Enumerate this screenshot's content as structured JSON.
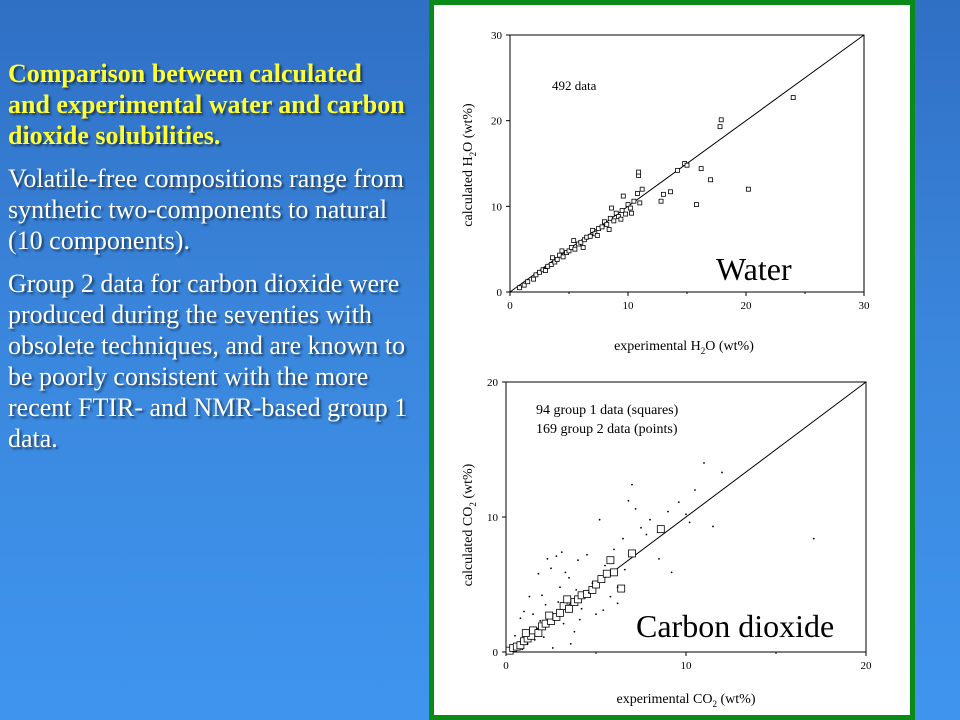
{
  "text": {
    "heading": "Comparison between calculated and experimental water and carbon dioxide solubilities.",
    "para1": "Volatile-free compositions range from synthetic two-components to natural (10 components).",
    "para2": "Group 2 data for carbon dioxide were produced during the seventies with obsolete techniques, and are known to be poorly consistent with the more recent FTIR- and NMR-based group 1 data."
  },
  "colors": {
    "heading": "#ffff33",
    "body_text": "#ffffff",
    "panel_border": "#0a8a16",
    "background": "#3a86dc"
  },
  "chart_data": [
    {
      "type": "scatter",
      "title": "",
      "label": "Water",
      "annotation": "492 data",
      "xlabel": "experimental H2O (wt%)",
      "ylabel": "calculated H2O (wt%)",
      "xlim": [
        0,
        30
      ],
      "ylim": [
        0,
        30
      ],
      "xticks": [
        "0",
        "10",
        "20",
        "30"
      ],
      "yticks": [
        "0",
        "10",
        "20",
        "30"
      ],
      "reference_line": "1:1",
      "grid": false,
      "series": [
        {
          "marker": "square",
          "points": [
            [
              0.8,
              0.5
            ],
            [
              1.2,
              0.8
            ],
            [
              1.5,
              1.2
            ],
            [
              2,
              1.5
            ],
            [
              2.2,
              2
            ],
            [
              2.5,
              2.3
            ],
            [
              2.8,
              2.6
            ],
            [
              3,
              2.5
            ],
            [
              3.2,
              3
            ],
            [
              3.5,
              3.2
            ],
            [
              3.8,
              3.5
            ],
            [
              4,
              3.8
            ],
            [
              4.2,
              4.3
            ],
            [
              4.5,
              4.1
            ],
            [
              4.8,
              4.6
            ],
            [
              5,
              4.8
            ],
            [
              5.2,
              5.2
            ],
            [
              5.5,
              5
            ],
            [
              5.8,
              5.6
            ],
            [
              6,
              5.8
            ],
            [
              6.3,
              6.1
            ],
            [
              6.5,
              6.4
            ],
            [
              6.8,
              6.5
            ],
            [
              7,
              7.2
            ],
            [
              7.2,
              6.8
            ],
            [
              7.5,
              7.4
            ],
            [
              7.8,
              7.6
            ],
            [
              8,
              8.2
            ],
            [
              8.2,
              7.9
            ],
            [
              8.5,
              8.6
            ],
            [
              8.8,
              8.3
            ],
            [
              9,
              9.2
            ],
            [
              9.2,
              8.8
            ],
            [
              9.5,
              9.5
            ],
            [
              9.8,
              9.1
            ],
            [
              10,
              10.2
            ],
            [
              10.2,
              9.8
            ],
            [
              10.5,
              10.6
            ],
            [
              11,
              10.4
            ],
            [
              6.2,
              5.2
            ],
            [
              7.4,
              6.6
            ],
            [
              8.4,
              7.3
            ],
            [
              9.4,
              8.5
            ],
            [
              10.3,
              9.2
            ],
            [
              10.8,
              11.5
            ],
            [
              11.2,
              12
            ],
            [
              9.6,
              11.2
            ],
            [
              8.6,
              9.8
            ],
            [
              5.4,
              6
            ],
            [
              4.4,
              4.8
            ],
            [
              3.6,
              4
            ],
            [
              10.9,
              13.6
            ],
            [
              10.9,
              14
            ],
            [
              12.8,
              10.6
            ],
            [
              13,
              11.4
            ],
            [
              13.6,
              11.7
            ],
            [
              14.2,
              14.2
            ],
            [
              14.8,
              15
            ],
            [
              15,
              14.8
            ],
            [
              15.8,
              10.2
            ],
            [
              16.2,
              14.4
            ],
            [
              17,
              13.1
            ],
            [
              17.8,
              19.3
            ],
            [
              17.9,
              20.1
            ],
            [
              20.2,
              12
            ],
            [
              24,
              22.7
            ]
          ]
        }
      ]
    },
    {
      "type": "scatter",
      "title": "",
      "label": "Carbon dioxide",
      "annotations": [
        "94 group 1 data (squares)",
        "169 group 2 data (points)"
      ],
      "xlabel": "experimental CO2 (wt%)",
      "ylabel": "calculated CO2 (wt%)",
      "xlim": [
        0,
        20
      ],
      "ylim": [
        0,
        20
      ],
      "xticks": [
        "0",
        "10",
        "20"
      ],
      "yticks": [
        "0",
        "10",
        "20"
      ],
      "reference_line": "1:1",
      "grid": false,
      "series": [
        {
          "name": "94 group 1 data (squares)",
          "marker": "square",
          "points": [
            [
              0.2,
              0.1
            ],
            [
              0.4,
              0.3
            ],
            [
              0.6,
              0.4
            ],
            [
              0.8,
              0.5
            ],
            [
              1,
              0.8
            ],
            [
              1.2,
              1
            ],
            [
              1.4,
              1.2
            ],
            [
              1.5,
              1.6
            ],
            [
              1.8,
              1.4
            ],
            [
              2,
              1.9
            ],
            [
              2.2,
              2.1
            ],
            [
              2.5,
              2.3
            ],
            [
              2.8,
              2.6
            ],
            [
              3,
              2.9
            ],
            [
              3.2,
              3.4
            ],
            [
              3.5,
              3.2
            ],
            [
              3.8,
              3.7
            ],
            [
              4,
              3.9
            ],
            [
              4.2,
              4.2
            ],
            [
              4.5,
              4.3
            ],
            [
              4.8,
              4.6
            ],
            [
              5,
              5
            ],
            [
              5.3,
              5.4
            ],
            [
              5.6,
              5.8
            ],
            [
              6,
              5.9
            ],
            [
              6.4,
              4.7
            ],
            [
              5.8,
              6.8
            ],
            [
              7,
              7.3
            ],
            [
              8.6,
              9.1
            ],
            [
              1.1,
              1.4
            ],
            [
              2.4,
              2.7
            ],
            [
              3.4,
              3.9
            ]
          ]
        },
        {
          "name": "169 group 2 data (points)",
          "marker": "point",
          "points": [
            [
              0.5,
              1.2
            ],
            [
              0.8,
              2.5
            ],
            [
              1,
              3
            ],
            [
              1.2,
              0.6
            ],
            [
              1.5,
              2.8
            ],
            [
              1.8,
              5.8
            ],
            [
              2,
              4.2
            ],
            [
              2.2,
              3.5
            ],
            [
              2.5,
              6.2
            ],
            [
              2.8,
              7.1
            ],
            [
              3,
              4.8
            ],
            [
              3.2,
              2.1
            ],
            [
              3.5,
              5.5
            ],
            [
              3.8,
              1.5
            ],
            [
              4,
              6.8
            ],
            [
              4.2,
              3.2
            ],
            [
              4.5,
              7.2
            ],
            [
              4.8,
              5.1
            ],
            [
              5,
              2.8
            ],
            [
              5.2,
              9.8
            ],
            [
              5.5,
              6.4
            ],
            [
              5.8,
              4.1
            ],
            [
              6,
              7.6
            ],
            [
              6.2,
              3.6
            ],
            [
              6.5,
              8.4
            ],
            [
              6.8,
              11.2
            ],
            [
              7,
              12.4
            ],
            [
              7.2,
              10.6
            ],
            [
              7.5,
              9.2
            ],
            [
              8,
              9.8
            ],
            [
              8.5,
              6.9
            ],
            [
              9,
              10.4
            ],
            [
              9.2,
              5.9
            ],
            [
              10,
              10.2
            ],
            [
              10.5,
              12
            ],
            [
              11,
              14
            ],
            [
              11.5,
              9.3
            ],
            [
              12,
              13.3
            ],
            [
              17.1,
              8.4
            ],
            [
              6.2,
              4.8
            ],
            [
              5.4,
              3.1
            ],
            [
              4.1,
              2.4
            ],
            [
              3.3,
              5.9
            ],
            [
              2.1,
              1.1
            ],
            [
              1.3,
              4.1
            ],
            [
              1.6,
              0.9
            ],
            [
              2.6,
              0.3
            ],
            [
              3.6,
              0.6
            ],
            [
              4.6,
              4.4
            ],
            [
              6.6,
              6.1
            ],
            [
              7.8,
              8.7
            ],
            [
              9.6,
              11.1
            ],
            [
              10.2,
              9.6
            ],
            [
              2.9,
              3.7
            ],
            [
              3.9,
              4.6
            ],
            [
              0.9,
              0.2
            ],
            [
              1.9,
              2.3
            ],
            [
              2.3,
              6.9
            ],
            [
              3.1,
              7.4
            ]
          ]
        }
      ]
    }
  ]
}
